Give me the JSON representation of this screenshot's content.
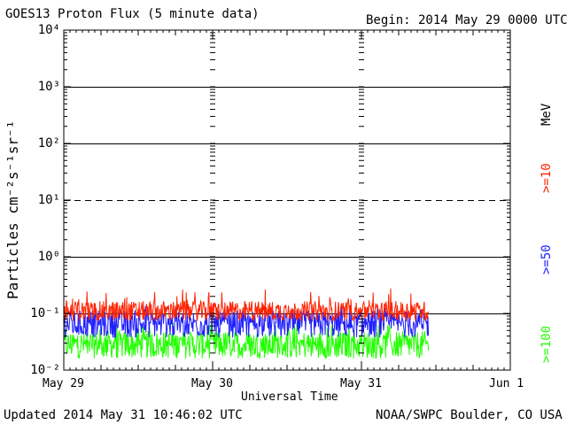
{
  "header": {
    "title": "GOES13 Proton Flux (5 minute data)",
    "begin": "Begin: 2014 May 29 0000 UTC"
  },
  "footer": {
    "updated": "Updated 2014 May 31 10:46:02 UTC",
    "source": "NOAA/SWPC Boulder, CO USA"
  },
  "chart_data": {
    "type": "line",
    "title": "GOES13 Proton Flux (5 minute data)",
    "xlabel": "Universal Time",
    "ylabel": "Particles cm⁻²s⁻¹sr⁻¹",
    "y_scale": "log",
    "ylim": [
      0.01,
      10000
    ],
    "y_ticks": [
      {
        "value": 0.01,
        "label": "10⁻²"
      },
      {
        "value": 0.1,
        "label": "10⁻¹"
      },
      {
        "value": 1,
        "label": "10⁰"
      },
      {
        "value": 10,
        "label": "10¹"
      },
      {
        "value": 100,
        "label": "10²"
      },
      {
        "value": 1000,
        "label": "10³"
      },
      {
        "value": 10000,
        "label": "10⁴"
      }
    ],
    "x_ticks": [
      "May 29",
      "May 30",
      "May 31",
      "Jun 1"
    ],
    "xlim_days": [
      0,
      3
    ],
    "data_end_day": 2.45,
    "units_label": "MeV",
    "series": [
      {
        "name": ">=10",
        "color": "#ff2200",
        "typical": 0.11,
        "min": 0.07,
        "max": 0.28
      },
      {
        "name": ">=50",
        "color": "#2020ff",
        "typical": 0.065,
        "min": 0.035,
        "max": 0.14
      },
      {
        "name": ">=100",
        "color": "#22ff00",
        "typical": 0.028,
        "min": 0.015,
        "max": 0.07
      }
    ],
    "grid": "horizontal at each decade; dashed at 10¹"
  }
}
